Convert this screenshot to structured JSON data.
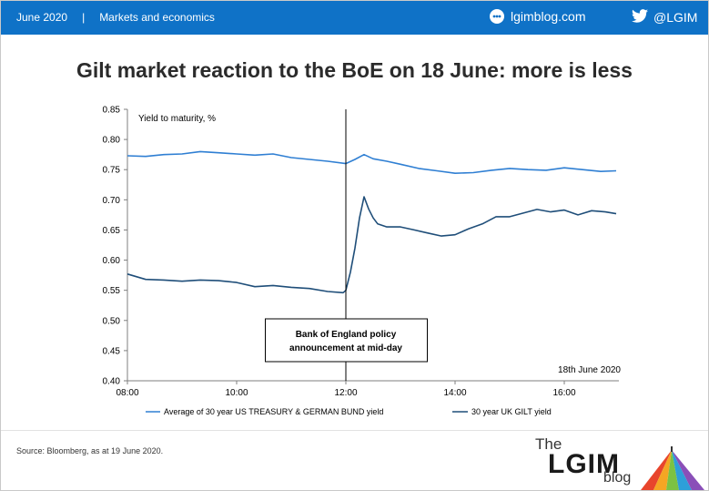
{
  "header": {
    "date": "June 2020",
    "separator": "|",
    "section": "Markets and economics",
    "site": "lgimblog.com",
    "site_icon": "lgim-blog-icon",
    "twitter": "@LGIM",
    "twitter_icon": "twitter-bird-icon",
    "background": "#0f72c7"
  },
  "title": "Gilt market reaction to the BoE on 18 June: more is less",
  "source": "Source: Bloomberg, as at 19 June 2020.",
  "logo": {
    "the": "The",
    "name": "LGIM",
    "blog": "blog"
  },
  "chart_data": {
    "type": "line",
    "ylabel": "Yield to maturity, %",
    "ylim": [
      0.4,
      0.85
    ],
    "yticks": [
      "0.40",
      "0.45",
      "0.50",
      "0.55",
      "0.60",
      "0.65",
      "0.70",
      "0.75",
      "0.80",
      "0.85"
    ],
    "xlim": [
      "08:00",
      "17:00"
    ],
    "xticks": [
      "08:00",
      "10:00",
      "12:00",
      "14:00",
      "16:00"
    ],
    "date_label": "18th June 2020",
    "grid": false,
    "legend_position": "bottom",
    "annotation": {
      "x": "12:00",
      "line1": "Bank of England policy",
      "line2": "announcement at mid-day"
    },
    "series": [
      {
        "name": "Average of 30 year US TREASURY & GERMAN BUND yield",
        "color": "#2f7fd3",
        "x": [
          "08:00",
          "08:20",
          "08:40",
          "09:00",
          "09:20",
          "09:40",
          "10:00",
          "10:20",
          "10:40",
          "11:00",
          "11:20",
          "11:40",
          "12:00",
          "12:10",
          "12:20",
          "12:30",
          "12:45",
          "13:00",
          "13:20",
          "13:40",
          "14:00",
          "14:20",
          "14:40",
          "15:00",
          "15:20",
          "15:40",
          "16:00",
          "16:20",
          "16:40",
          "16:57"
        ],
        "values": [
          0.773,
          0.772,
          0.775,
          0.776,
          0.78,
          0.778,
          0.776,
          0.774,
          0.776,
          0.77,
          0.767,
          0.764,
          0.76,
          0.767,
          0.775,
          0.768,
          0.764,
          0.759,
          0.752,
          0.748,
          0.744,
          0.745,
          0.749,
          0.752,
          0.75,
          0.749,
          0.753,
          0.75,
          0.747,
          0.748
        ]
      },
      {
        "name": "30 year UK GILT yield",
        "color": "#1f4e79",
        "x": [
          "08:00",
          "08:20",
          "08:40",
          "09:00",
          "09:20",
          "09:40",
          "10:00",
          "10:20",
          "10:40",
          "11:00",
          "11:20",
          "11:40",
          "11:57",
          "12:00",
          "12:05",
          "12:10",
          "12:15",
          "12:20",
          "12:25",
          "12:30",
          "12:35",
          "12:45",
          "13:00",
          "13:15",
          "13:30",
          "13:45",
          "14:00",
          "14:15",
          "14:30",
          "14:45",
          "15:00",
          "15:15",
          "15:30",
          "15:45",
          "16:00",
          "16:15",
          "16:30",
          "16:45",
          "16:57"
        ],
        "values": [
          0.577,
          0.568,
          0.567,
          0.565,
          0.567,
          0.566,
          0.563,
          0.556,
          0.558,
          0.555,
          0.553,
          0.548,
          0.546,
          0.55,
          0.58,
          0.62,
          0.67,
          0.705,
          0.685,
          0.67,
          0.66,
          0.655,
          0.655,
          0.65,
          0.645,
          0.64,
          0.642,
          0.652,
          0.66,
          0.672,
          0.672,
          0.678,
          0.684,
          0.68,
          0.683,
          0.675,
          0.682,
          0.68,
          0.677
        ]
      }
    ]
  }
}
